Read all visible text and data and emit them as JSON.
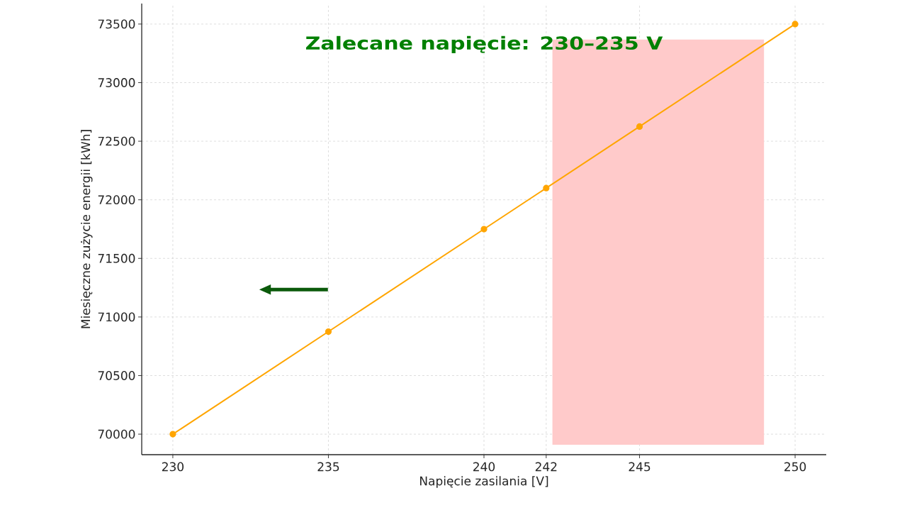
{
  "chart_data": {
    "type": "line",
    "xlabel": "Napięcie zasilania [V]",
    "ylabel": "Miesięczne zużycie energii [kWh]",
    "annotations": [
      "Zalecane napięcie: 230–235 V"
    ],
    "x": [
      230,
      235,
      240,
      242,
      245,
      250
    ],
    "series": [
      {
        "color": "#ffa500",
        "values": [
          70000,
          70875,
          71750,
          72100,
          72625,
          73500
        ]
      }
    ],
    "xlim": [
      229,
      251
    ],
    "ylim": [
      69825,
      73675
    ],
    "xticks": [
      230,
      235,
      240,
      242,
      245,
      250
    ],
    "yticks": [
      70000,
      70500,
      71000,
      71500,
      72000,
      72500,
      73000,
      73500
    ],
    "bands": [
      {
        "axis": "x",
        "from": 242.2,
        "to": 249,
        "color": "#ffcaca"
      }
    ],
    "grid": true,
    "marker": "circle",
    "line_style": "solid"
  }
}
